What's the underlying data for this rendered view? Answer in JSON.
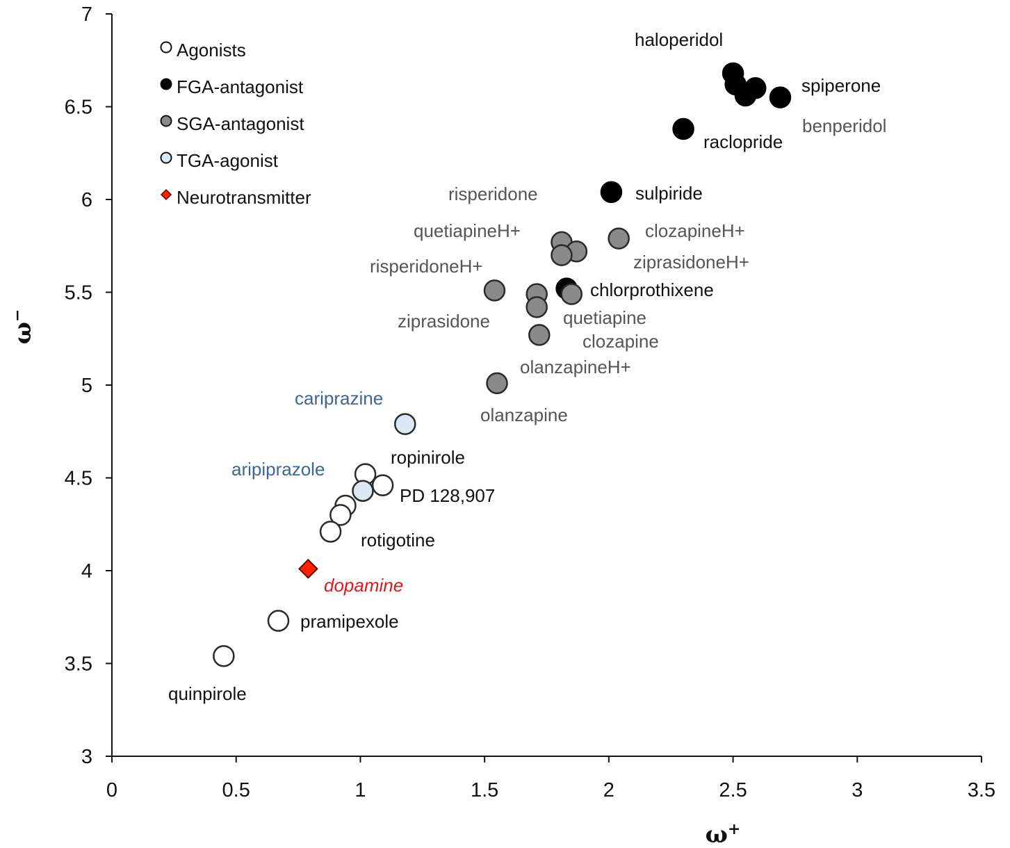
{
  "chart_data": {
    "type": "scatter",
    "title": "",
    "xlabel": "ω+",
    "ylabel": "ω−",
    "xlim": [
      0,
      3.5
    ],
    "ylim": [
      3,
      7
    ],
    "x_ticks": [
      "0",
      "0.5",
      "1",
      "1.5",
      "2",
      "2.5",
      "3",
      "3.5"
    ],
    "y_ticks": [
      "3",
      "3.5",
      "4",
      "4.5",
      "5",
      "5.5",
      "6",
      "6.5",
      "7"
    ],
    "legend_position": "top-left",
    "colors": {
      "agonist": "#ffffff",
      "fga": "#000000",
      "sga": "#8a8a8a",
      "tga": "#dce9f5",
      "neurotransmitter": "#ff2200",
      "label_black": "#111111",
      "label_gray": "#555555",
      "label_blue": "#3d6596",
      "label_red": "#e8141b"
    },
    "legend": [
      {
        "label": "Agonists",
        "group": "agonist",
        "marker": "circle"
      },
      {
        "label": "FGA-antagonist",
        "group": "fga",
        "marker": "circle"
      },
      {
        "label": "SGA-antagonist",
        "group": "sga",
        "marker": "circle"
      },
      {
        "label": "TGA-agonist",
        "group": "tga",
        "marker": "circle"
      },
      {
        "label": "Neurotransmitter",
        "group": "neurotransmitter",
        "marker": "diamond"
      }
    ],
    "points": [
      {
        "name": "haloperidol",
        "x": 2.5,
        "y": 6.68,
        "group": "fga"
      },
      {
        "name": "",
        "x": 2.51,
        "y": 6.62,
        "group": "fga"
      },
      {
        "name": "spiperone",
        "x": 2.59,
        "y": 6.6,
        "group": "fga"
      },
      {
        "name": "",
        "x": 2.55,
        "y": 6.56,
        "group": "fga"
      },
      {
        "name": "benperidol",
        "x": 2.69,
        "y": 6.55,
        "group": "fga"
      },
      {
        "name": "raclopride",
        "x": 2.3,
        "y": 6.38,
        "group": "fga"
      },
      {
        "name": "sulpiride",
        "x": 2.01,
        "y": 6.04,
        "group": "fga"
      },
      {
        "name": "chlorprothixene",
        "x": 1.83,
        "y": 5.52,
        "group": "fga"
      },
      {
        "name": "clozapineH+",
        "x": 2.04,
        "y": 5.79,
        "group": "sga"
      },
      {
        "name": "risperidone",
        "x": 1.81,
        "y": 5.77,
        "group": "sga"
      },
      {
        "name": "quetiapineH+",
        "x": 1.87,
        "y": 5.72,
        "group": "sga"
      },
      {
        "name": "ziprasidoneH+",
        "x": 1.81,
        "y": 5.7,
        "group": "sga"
      },
      {
        "name": "risperidoneH+",
        "x": 1.54,
        "y": 5.51,
        "group": "sga"
      },
      {
        "name": "quetiapine",
        "x": 1.71,
        "y": 5.49,
        "group": "sga"
      },
      {
        "name": "clozapine",
        "x": 1.85,
        "y": 5.49,
        "group": "sga"
      },
      {
        "name": "ziprasidone",
        "x": 1.71,
        "y": 5.42,
        "group": "sga"
      },
      {
        "name": "olanzapineH+",
        "x": 1.72,
        "y": 5.27,
        "group": "sga"
      },
      {
        "name": "olanzapine",
        "x": 1.55,
        "y": 5.01,
        "group": "sga"
      },
      {
        "name": "cariprazine",
        "x": 1.18,
        "y": 4.79,
        "group": "tga"
      },
      {
        "name": "ropinirole",
        "x": 1.02,
        "y": 4.52,
        "group": "agonist"
      },
      {
        "name": "PD 128,907",
        "x": 1.09,
        "y": 4.46,
        "group": "agonist"
      },
      {
        "name": "aripiprazole",
        "x": 1.01,
        "y": 4.43,
        "group": "tga"
      },
      {
        "name": "",
        "x": 0.94,
        "y": 4.35,
        "group": "agonist"
      },
      {
        "name": "",
        "x": 0.92,
        "y": 4.3,
        "group": "agonist"
      },
      {
        "name": "rotigotine",
        "x": 0.88,
        "y": 4.21,
        "group": "agonist"
      },
      {
        "name": "dopamine",
        "x": 0.79,
        "y": 4.01,
        "group": "neurotransmitter"
      },
      {
        "name": "pramipexole",
        "x": 0.67,
        "y": 3.73,
        "group": "agonist"
      },
      {
        "name": "quinpirole",
        "x": 0.45,
        "y": 3.54,
        "group": "agonist"
      }
    ],
    "labels": [
      {
        "text": "haloperidol",
        "color": "label_black"
      },
      {
        "text": "spiperone",
        "color": "label_black"
      },
      {
        "text": "benperidol",
        "color": "label_gray"
      },
      {
        "text": "raclopride",
        "color": "label_black"
      },
      {
        "text": "sulpiride",
        "color": "label_black"
      },
      {
        "text": "risperidone",
        "color": "label_gray"
      },
      {
        "text": "quetiapineH+",
        "color": "label_gray"
      },
      {
        "text": "clozapineH+",
        "color": "label_gray"
      },
      {
        "text": "ziprasidoneH+",
        "color": "label_gray"
      },
      {
        "text": "risperidoneH+",
        "color": "label_gray"
      },
      {
        "text": "chlorprothixene",
        "color": "label_black"
      },
      {
        "text": "ziprasidone",
        "color": "label_gray"
      },
      {
        "text": "quetiapine",
        "color": "label_gray"
      },
      {
        "text": "clozapine",
        "color": "label_gray"
      },
      {
        "text": "olanzapineH+",
        "color": "label_gray"
      },
      {
        "text": "olanzapine",
        "color": "label_gray"
      },
      {
        "text": "cariprazine",
        "color": "label_blue"
      },
      {
        "text": "ropinirole",
        "color": "label_black"
      },
      {
        "text": "aripiprazole",
        "color": "label_blue"
      },
      {
        "text": "PD 128,907",
        "color": "label_black"
      },
      {
        "text": "rotigotine",
        "color": "label_black"
      },
      {
        "text": "dopamine",
        "color": "label_red",
        "italic": true
      },
      {
        "text": "pramipexole",
        "color": "label_black"
      },
      {
        "text": "quinpirole",
        "color": "label_black"
      }
    ]
  }
}
